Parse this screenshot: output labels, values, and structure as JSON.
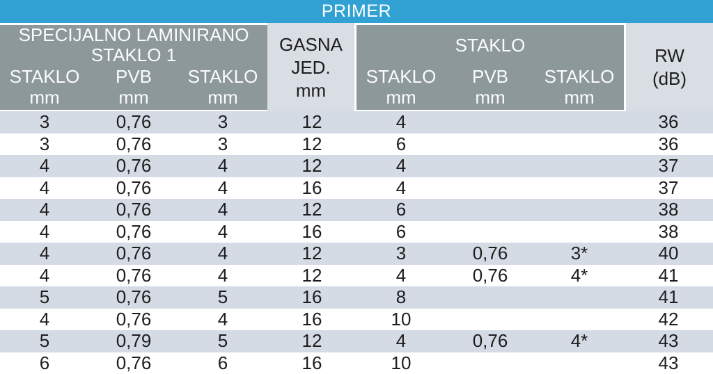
{
  "banner": {
    "title": "PRIMER"
  },
  "colors": {
    "banner_bg": "#31a1d3",
    "banner_text": "#ffffff",
    "group_header_bg": "#8d989b",
    "group_header_text": "#fbfcfc",
    "light_header_bg": "#d8dee3",
    "row_alt_bg": "#d5dbe4",
    "row_bg": "#ffffff",
    "data_text": "#1d1d1f"
  },
  "table": {
    "groups": [
      {
        "name": "specijalno-laminirano-staklo-1",
        "title_lines": [
          "SPECIJALNO LAMINIRANO",
          "STAKLO 1"
        ],
        "columns": [
          {
            "label": "STAKLO",
            "unit": "mm"
          },
          {
            "label": "PVB",
            "unit": "mm"
          },
          {
            "label": "STAKLO",
            "unit": "mm"
          }
        ]
      },
      {
        "name": "gasna-jedinica",
        "title_lines": [
          "GASNA",
          "JED.",
          "mm"
        ]
      },
      {
        "name": "staklo",
        "title_lines": [
          "STAKLO"
        ],
        "columns": [
          {
            "label": "STAKLO",
            "unit": "mm"
          },
          {
            "label": "PVB",
            "unit": "mm"
          },
          {
            "label": "STAKLO",
            "unit": "mm"
          }
        ]
      },
      {
        "name": "rw",
        "title_lines": [
          "RW",
          "(dB)"
        ]
      }
    ],
    "rows": [
      [
        "3",
        "0,76",
        "3",
        "12",
        "4",
        "",
        "",
        "36"
      ],
      [
        "3",
        "0,76",
        "3",
        "12",
        "6",
        "",
        "",
        "36"
      ],
      [
        "4",
        "0,76",
        "4",
        "12",
        "4",
        "",
        "",
        "37"
      ],
      [
        "4",
        "0,76",
        "4",
        "16",
        "4",
        "",
        "",
        "37"
      ],
      [
        "4",
        "0,76",
        "4",
        "12",
        "6",
        "",
        "",
        "38"
      ],
      [
        "4",
        "0,76",
        "4",
        "16",
        "6",
        "",
        "",
        "38"
      ],
      [
        "4",
        "0,76",
        "4",
        "12",
        "3",
        "0,76",
        "3*",
        "40"
      ],
      [
        "4",
        "0,76",
        "4",
        "12",
        "4",
        "0,76",
        "4*",
        "41"
      ],
      [
        "5",
        "0,76",
        "5",
        "16",
        "8",
        "",
        "",
        "41"
      ],
      [
        "4",
        "0,76",
        "4",
        "16",
        "10",
        "",
        "",
        "42"
      ],
      [
        "5",
        "0,79",
        "5",
        "12",
        "4",
        "0,76",
        "4*",
        "43"
      ],
      [
        "6",
        "0,76",
        "6",
        "16",
        "10",
        "",
        "",
        "43"
      ]
    ]
  }
}
